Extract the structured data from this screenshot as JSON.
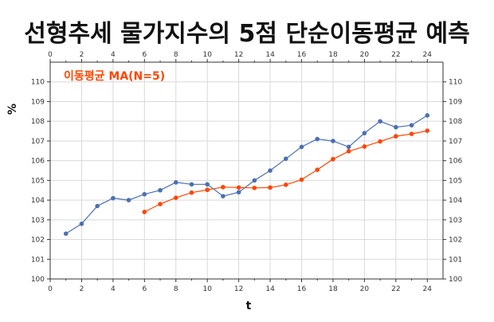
{
  "chart_data": {
    "type": "line",
    "title": "선형추세 물가지수의 5점 단순이동평균 예측",
    "xlabel": "t",
    "ylabel": "%",
    "xlim": [
      0,
      25
    ],
    "ylim": [
      100,
      111
    ],
    "x_ticks": [
      0,
      2,
      4,
      6,
      8,
      10,
      12,
      14,
      16,
      18,
      20,
      22,
      24
    ],
    "y_ticks": [
      100,
      101,
      102,
      103,
      104,
      105,
      106,
      107,
      108,
      109,
      110
    ],
    "grid": true,
    "annotation": "이동평균 MA(N=5)",
    "series": [
      {
        "color": "#4a6fb5",
        "x": [
          1,
          2,
          3,
          4,
          5,
          6,
          7,
          8,
          9,
          10,
          11,
          12,
          13,
          14,
          15,
          16,
          17,
          18,
          19,
          20,
          21,
          22,
          23,
          24
        ],
        "y": [
          102.3,
          102.8,
          103.7,
          104.1,
          104.0,
          104.3,
          104.5,
          104.9,
          104.8,
          104.8,
          104.2,
          104.4,
          105.0,
          105.5,
          106.1,
          106.7,
          107.1,
          107.0,
          106.7,
          107.4,
          108.0,
          107.7,
          107.8,
          108.3
        ]
      },
      {
        "color": "#ff4500",
        "x": [
          6,
          7,
          8,
          9,
          10,
          11,
          12,
          13,
          14,
          15,
          16,
          17,
          18,
          19,
          20,
          21,
          22,
          23,
          24
        ],
        "y": [
          103.4,
          103.8,
          104.12,
          104.38,
          104.52,
          104.66,
          104.64,
          104.62,
          104.64,
          104.78,
          105.04,
          105.54,
          106.08,
          106.48,
          106.72,
          106.98,
          107.24,
          107.36,
          107.52
        ]
      }
    ]
  }
}
